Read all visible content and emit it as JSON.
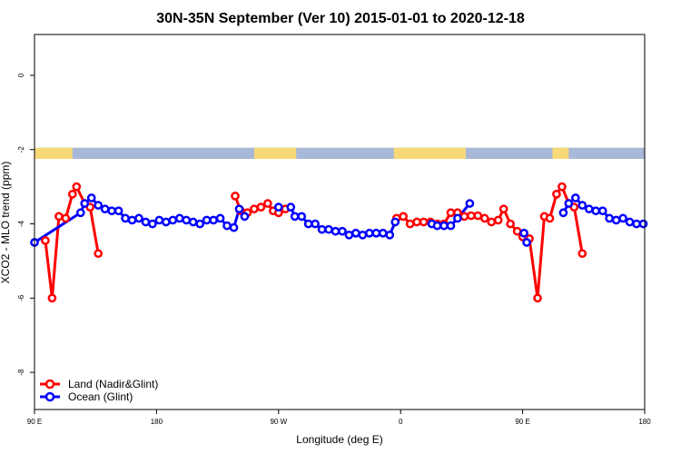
{
  "title": "30N-35N September (Ver 10)   2015-01-01 to 2020-12-18",
  "chart_data": {
    "type": "line",
    "title": "30N-35N September (Ver 10)   2015-01-01 to 2020-12-18",
    "xlabel": "Longitude (deg E)",
    "ylabel": "XCO2 - MLO trend (ppm)",
    "xlim": [
      90,
      540
    ],
    "ylim": [
      -9.0,
      1.1
    ],
    "x_ticks": [
      {
        "value": 90,
        "label": "90 E"
      },
      {
        "value": 180,
        "label": "180"
      },
      {
        "value": 270,
        "label": "90 W"
      },
      {
        "value": 360,
        "label": "0"
      },
      {
        "value": 450,
        "label": "90 E"
      },
      {
        "value": 540,
        "label": "180"
      }
    ],
    "y_ticks": [
      {
        "value": 0,
        "label": "0"
      },
      {
        "value": -2,
        "label": "-2"
      },
      {
        "value": -4,
        "label": "-4"
      },
      {
        "value": -6,
        "label": "-6"
      },
      {
        "value": -8,
        "label": "-8"
      }
    ],
    "legend_position": "bottom-left",
    "grid": false,
    "series": [
      {
        "name": "Land (Nadir&Glint)",
        "color": "#ff0000",
        "segments": [
          [
            [
              98,
              -4.45
            ],
            [
              103,
              -6.0
            ],
            [
              108,
              -3.8
            ],
            [
              113,
              -3.85
            ],
            [
              118,
              -3.2
            ],
            [
              121,
              -3.0
            ],
            [
              127,
              -3.45
            ],
            [
              131,
              -3.55
            ],
            [
              137,
              -4.8
            ]
          ],
          [
            [
              238,
              -3.25
            ],
            [
              242,
              -3.65
            ],
            [
              247,
              -3.7
            ],
            [
              252,
              -3.6
            ],
            [
              257,
              -3.55
            ],
            [
              262,
              -3.45
            ],
            [
              266,
              -3.65
            ],
            [
              270,
              -3.7
            ],
            [
              275,
              -3.6
            ]
          ],
          [
            [
              357,
              -3.85
            ],
            [
              362,
              -3.8
            ],
            [
              367,
              -4.0
            ],
            [
              372,
              -3.95
            ],
            [
              377,
              -3.95
            ],
            [
              382,
              -3.95
            ],
            [
              387,
              -4.0
            ],
            [
              392,
              -4.0
            ],
            [
              397,
              -3.7
            ],
            [
              402,
              -3.7
            ],
            [
              407,
              -3.8
            ],
            [
              412,
              -3.78
            ],
            [
              417,
              -3.78
            ],
            [
              422,
              -3.85
            ],
            [
              427,
              -3.95
            ],
            [
              432,
              -3.9
            ],
            [
              436,
              -3.6
            ],
            [
              441,
              -4.0
            ],
            [
              446,
              -4.2
            ],
            [
              450,
              -4.35
            ],
            [
              455,
              -4.4
            ],
            [
              461,
              -6.0
            ],
            [
              466,
              -3.8
            ],
            [
              470,
              -3.85
            ],
            [
              475,
              -3.2
            ],
            [
              479,
              -3.0
            ],
            [
              484,
              -3.45
            ],
            [
              488,
              -3.55
            ],
            [
              494,
              -4.8
            ]
          ]
        ]
      },
      {
        "name": "Ocean (Glint)",
        "color": "#0000ff",
        "segments": [
          [
            [
              90,
              -4.5
            ],
            [
              124,
              -3.7
            ],
            [
              127,
              -3.45
            ],
            [
              132,
              -3.3
            ],
            [
              137,
              -3.5
            ],
            [
              142,
              -3.6
            ],
            [
              147,
              -3.65
            ],
            [
              152,
              -3.65
            ],
            [
              157,
              -3.85
            ],
            [
              162,
              -3.9
            ],
            [
              167,
              -3.85
            ],
            [
              172,
              -3.95
            ],
            [
              177,
              -4.0
            ],
            [
              182,
              -3.9
            ],
            [
              187,
              -3.95
            ],
            [
              192,
              -3.9
            ],
            [
              197,
              -3.85
            ],
            [
              202,
              -3.9
            ],
            [
              207,
              -3.95
            ],
            [
              212,
              -4.0
            ],
            [
              217,
              -3.9
            ],
            [
              222,
              -3.9
            ],
            [
              227,
              -3.85
            ],
            [
              232,
              -4.05
            ],
            [
              237,
              -4.1
            ],
            [
              241,
              -3.6
            ],
            [
              245,
              -3.8
            ]
          ],
          [
            [
              270,
              -3.55
            ],
            [
              279,
              -3.55
            ],
            [
              282,
              -3.8
            ],
            [
              287,
              -3.8
            ],
            [
              292,
              -4.0
            ],
            [
              297,
              -4.0
            ],
            [
              302,
              -4.15
            ],
            [
              307,
              -4.15
            ],
            [
              312,
              -4.2
            ],
            [
              317,
              -4.2
            ],
            [
              322,
              -4.3
            ],
            [
              327,
              -4.25
            ],
            [
              332,
              -4.3
            ],
            [
              337,
              -4.25
            ],
            [
              342,
              -4.25
            ],
            [
              347,
              -4.25
            ],
            [
              352,
              -4.3
            ],
            [
              356,
              -3.95
            ]
          ],
          [
            [
              383,
              -4.0
            ],
            [
              387,
              -4.05
            ],
            [
              392,
              -4.05
            ],
            [
              397,
              -4.05
            ],
            [
              402,
              -3.85
            ],
            [
              411,
              -3.45
            ]
          ],
          [
            [
              451,
              -4.25
            ],
            [
              453,
              -4.5
            ]
          ],
          [
            [
              480,
              -3.7
            ],
            [
              484,
              -3.45
            ],
            [
              489,
              -3.3
            ],
            [
              494,
              -3.5
            ],
            [
              499,
              -3.6
            ],
            [
              504,
              -3.65
            ],
            [
              509,
              -3.65
            ],
            [
              514,
              -3.85
            ],
            [
              519,
              -3.9
            ],
            [
              524,
              -3.85
            ],
            [
              529,
              -3.95
            ],
            [
              534,
              -4.0
            ],
            [
              539,
              -4.0
            ]
          ]
        ]
      }
    ],
    "land_ocean_strip": {
      "y_range": [
        -2.25,
        -1.95
      ],
      "ocean_color": "#a8b8d8",
      "land_color": "#f7d978",
      "land_spans": [
        [
          90,
          118
        ],
        [
          252,
          283
        ],
        [
          355,
          408
        ],
        [
          472,
          484
        ]
      ]
    }
  }
}
